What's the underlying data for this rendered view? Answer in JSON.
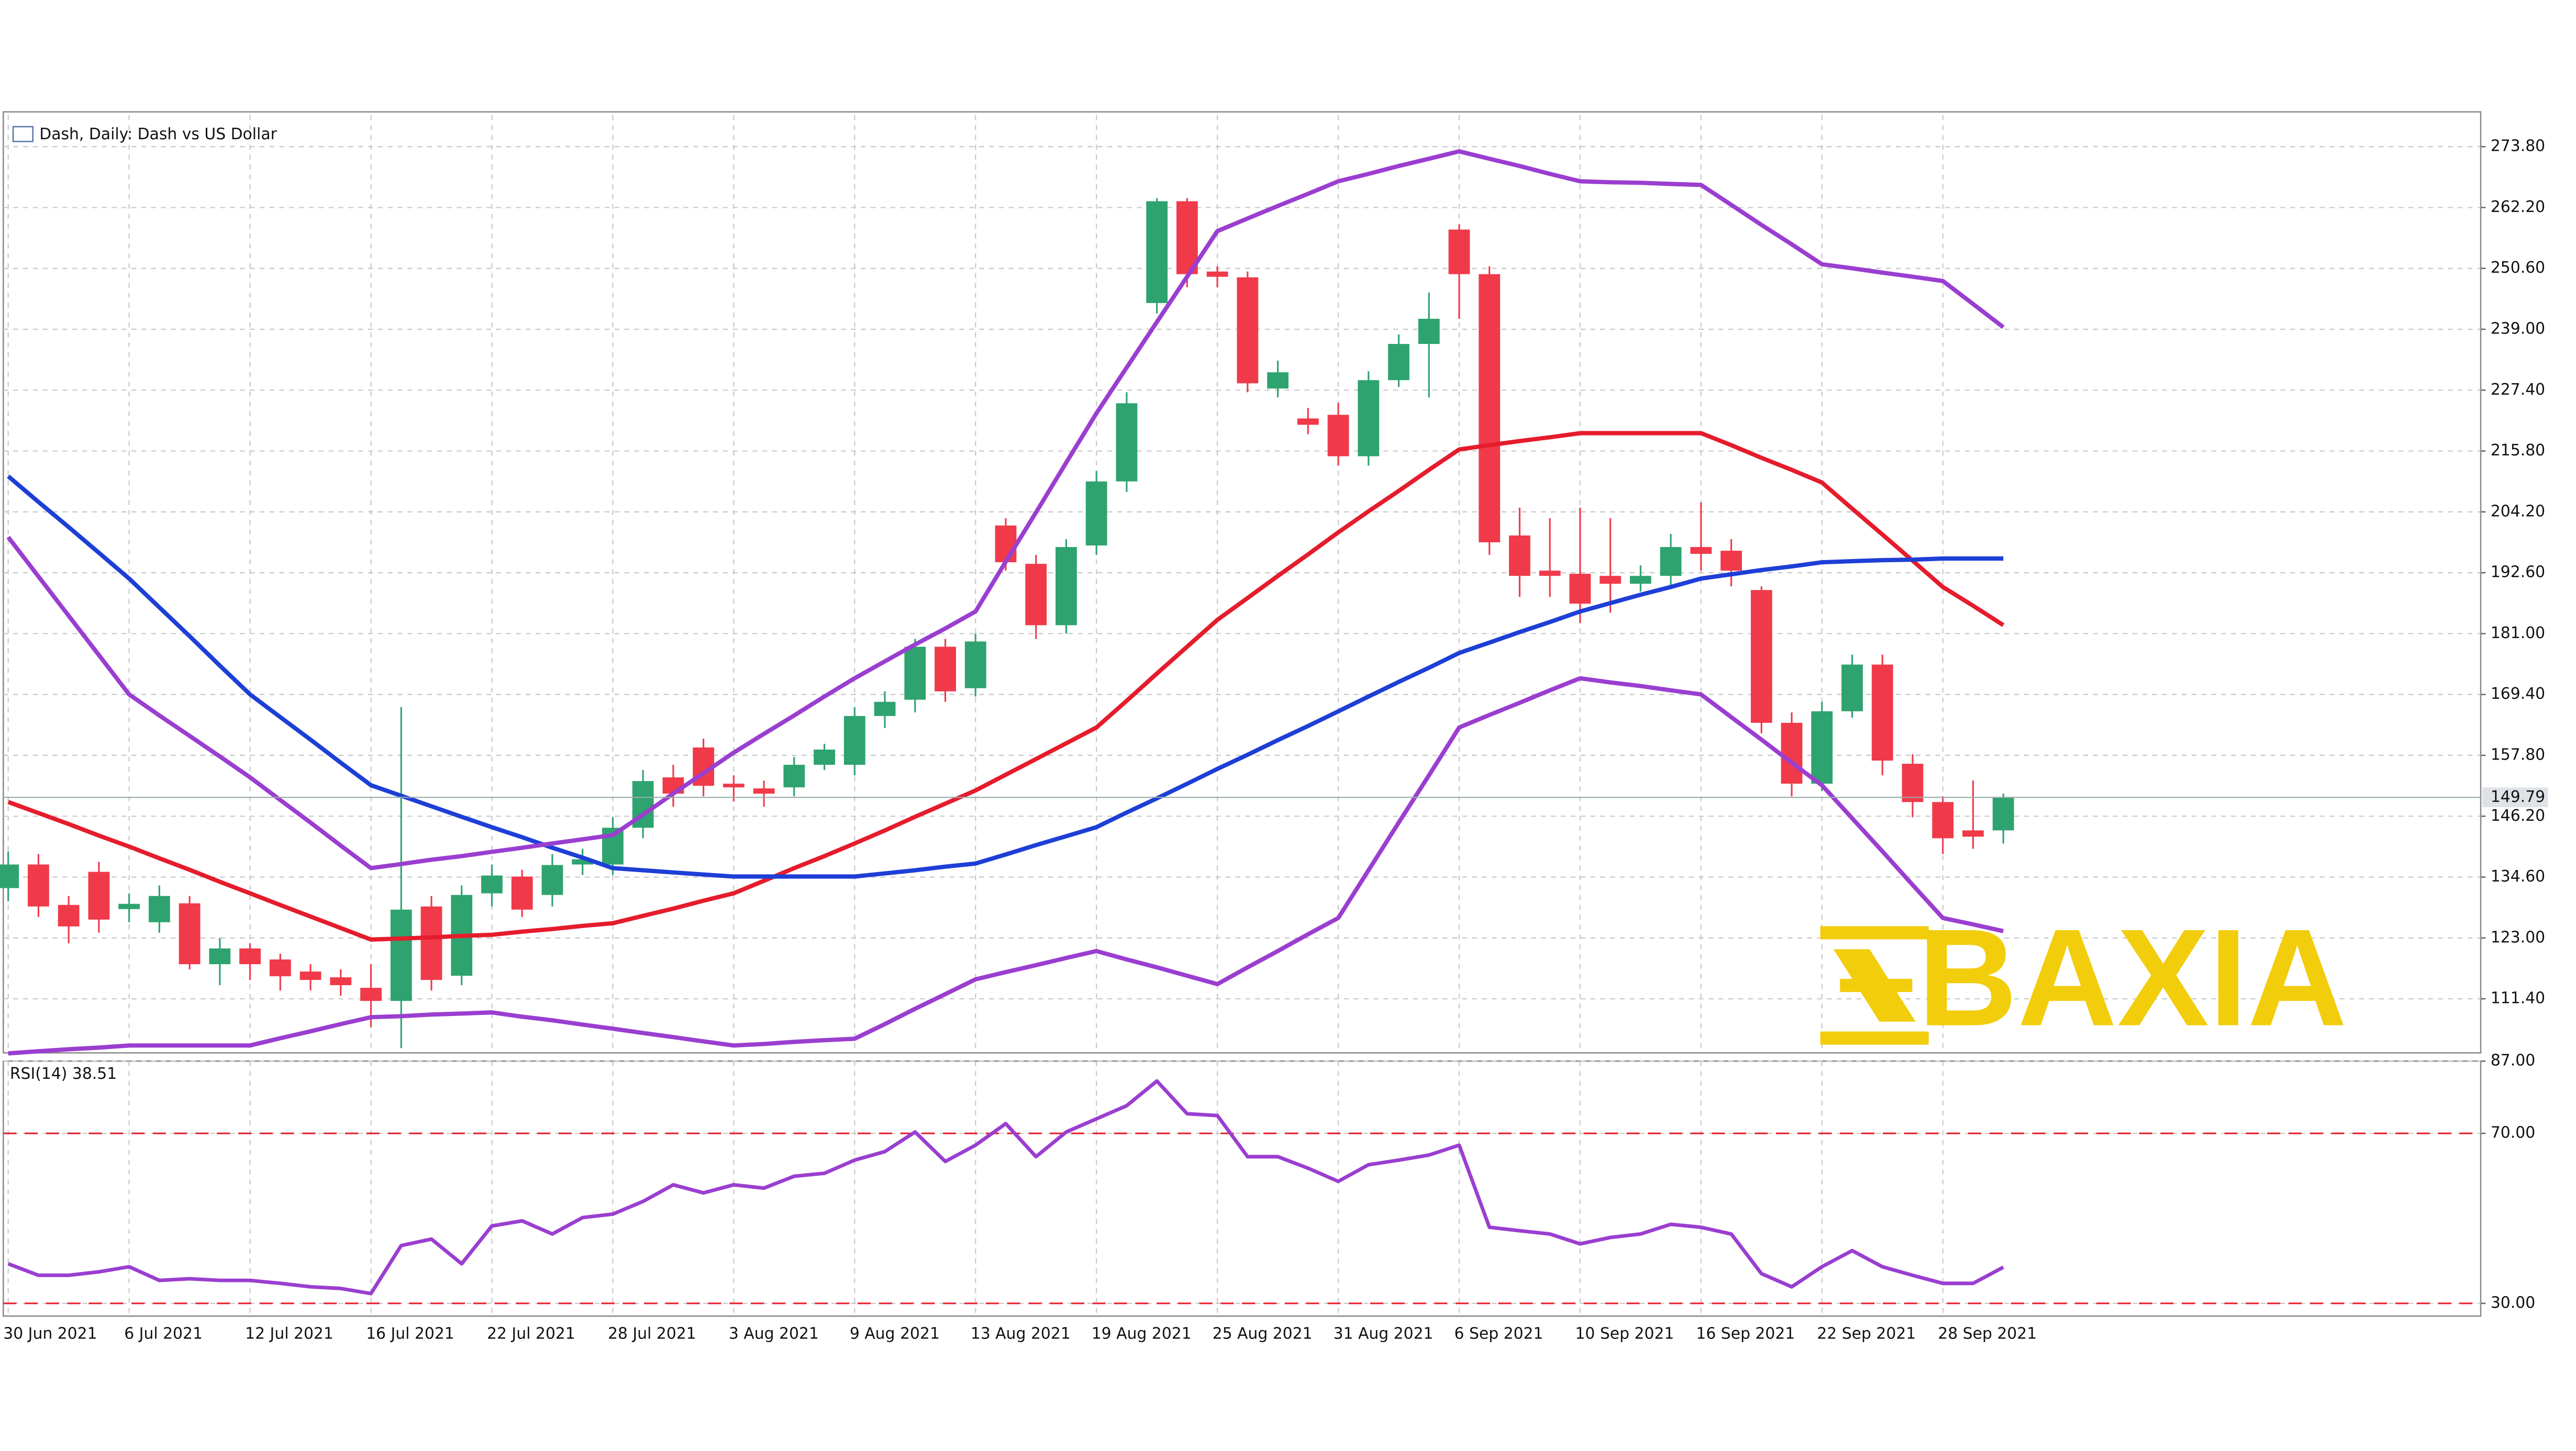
{
  "chart_data": [
    {
      "type": "candlestick",
      "title": "Dash, Daily:  Dash vs US Dollar",
      "watermark": "BAXIA",
      "categories": [
        "30 Jun 2021",
        null,
        null,
        null,
        "6 Jul 2021",
        null,
        null,
        null,
        "12 Jul 2021",
        null,
        null,
        null,
        "16 Jul 2021",
        null,
        null,
        null,
        "22 Jul 2021",
        null,
        null,
        null,
        "28 Jul 2021",
        null,
        null,
        null,
        "3 Aug 2021",
        null,
        null,
        null,
        "9 Aug 2021",
        null,
        null,
        null,
        "13 Aug 2021",
        null,
        null,
        null,
        "19 Aug 2021",
        null,
        null,
        null,
        "25 Aug 2021",
        null,
        null,
        null,
        "31 Aug 2021",
        null,
        null,
        null,
        "6 Sep 2021",
        null,
        null,
        null,
        "10 Sep 2021",
        null,
        null,
        null,
        "16 Sep 2021",
        null,
        null,
        null,
        "22 Sep 2021",
        null,
        null,
        null,
        "28 Sep 2021",
        null,
        null
      ],
      "open": [
        132.5,
        137,
        129.3,
        135.6,
        128.5,
        126,
        129.6,
        118,
        121,
        118.9,
        116.6,
        115.5,
        113.5,
        111,
        129,
        115.8,
        131.5,
        134.7,
        131.2,
        137,
        137,
        144,
        153.6,
        159.3,
        152.4,
        151.5,
        151.7,
        156,
        156,
        165.3,
        168.4,
        178.5,
        170.6,
        201.6,
        194.3,
        182.6,
        197.8,
        210,
        244,
        263.4,
        250,
        248.9,
        227.7,
        222,
        222.7,
        214.8,
        229.3,
        236.2,
        258,
        249.5,
        199.7,
        193,
        192.4,
        192,
        190.5,
        192,
        197.5,
        196.8,
        189.3,
        164,
        152.4,
        166.2,
        175.1,
        156.2,
        148.9,
        143.5,
        143.5
      ],
      "high": [
        139.5,
        139,
        131,
        137.5,
        131.5,
        133,
        131,
        123,
        122,
        120,
        118,
        117,
        118,
        167,
        131,
        133,
        137,
        136,
        139,
        140,
        146,
        155,
        156,
        161,
        154,
        153,
        157.5,
        160,
        167,
        170,
        180,
        180,
        181,
        203,
        196,
        199,
        212,
        227,
        264,
        264,
        251,
        250,
        233,
        224,
        225,
        231,
        238,
        246,
        259,
        251,
        205,
        203,
        205,
        203,
        194,
        200,
        206,
        199,
        190,
        166,
        168,
        177,
        177,
        158,
        150,
        153,
        150.5
      ],
      "low": [
        130,
        127,
        122,
        124,
        126,
        124,
        117,
        114,
        115,
        113,
        113,
        112,
        106,
        102,
        113,
        114,
        129,
        127,
        129,
        135,
        135,
        142,
        148,
        150,
        149,
        148,
        150,
        155,
        154,
        163,
        166,
        168,
        169,
        193,
        180,
        181,
        196,
        208,
        242,
        247,
        247,
        227,
        226,
        219,
        213,
        213,
        228,
        226,
        241,
        196,
        188,
        188,
        183,
        185,
        189,
        190,
        193,
        190,
        162,
        150,
        151,
        165,
        154,
        146,
        139,
        140,
        141
      ],
      "close": [
        137,
        129,
        125.2,
        126.5,
        129.5,
        131,
        118,
        121,
        118,
        115.7,
        115,
        114,
        111,
        128.4,
        115,
        131.2,
        134.9,
        128.4,
        136.9,
        138,
        144,
        152.9,
        150.5,
        152,
        151.7,
        150.5,
        156,
        158.9,
        165.3,
        168,
        178.5,
        170,
        179.5,
        194.6,
        182.6,
        197.5,
        210,
        224.9,
        263.4,
        249.5,
        249,
        228.7,
        230.8,
        220.8,
        214.8,
        229.3,
        236.2,
        241,
        249.5,
        198.4,
        192,
        192,
        186.7,
        190.5,
        192,
        197.5,
        196.2,
        193,
        164,
        152.4,
        166.2,
        175.1,
        156.8,
        148.9,
        142,
        142.3,
        149.79
      ],
      "up_color": "#2ea36f",
      "down_color": "#f03a4a",
      "overlays": [
        {
          "color": "#e51c2c",
          "values": [
            148.9,
            146.8,
            144.7,
            142.5,
            140.4,
            138.2,
            136.0,
            133.7,
            131.5,
            129.3,
            127.1,
            124.9,
            122.7,
            122.9,
            123.1,
            123.4,
            123.6,
            124.2,
            124.7,
            125.3,
            125.8,
            127.2,
            128.6,
            130.1,
            131.5,
            133.9,
            136.3,
            138.6,
            141.0,
            143.5,
            146.1,
            148.6,
            151.1,
            154.1,
            157.1,
            160.1,
            163.1,
            168.2,
            173.4,
            178.5,
            183.6,
            187.8,
            192.0,
            196.1,
            200.3,
            204.3,
            208.2,
            212.2,
            216.1,
            216.9,
            217.7,
            218.4,
            219.2,
            219.2,
            219.2,
            219.2,
            219.2,
            216.9,
            214.5,
            212.2,
            209.8,
            204.8,
            199.9,
            194.9,
            189.9,
            186.3,
            182.6
          ]
        },
        {
          "color": "#1d3fd6",
          "values": [
            211.0,
            206.1,
            201.3,
            196.4,
            191.5,
            186.0,
            180.5,
            174.9,
            169.4,
            165.1,
            160.8,
            156.4,
            152.1,
            150.1,
            148.1,
            146.1,
            144.1,
            142.2,
            140.2,
            138.3,
            136.3,
            135.9,
            135.5,
            135.1,
            134.7,
            134.7,
            134.7,
            134.7,
            134.7,
            135.3,
            135.9,
            136.6,
            137.2,
            138.9,
            140.7,
            142.4,
            144.1,
            146.9,
            149.6,
            152.4,
            155.2,
            157.9,
            160.7,
            163.4,
            166.2,
            169.0,
            171.8,
            174.5,
            177.3,
            179.3,
            181.3,
            183.2,
            185.2,
            186.8,
            188.4,
            189.9,
            191.5,
            192.3,
            193.1,
            193.8,
            194.6,
            194.8,
            195.0,
            195.1,
            195.3,
            195.3,
            195.3
          ]
        },
        {
          "color": "#9a3ed0",
          "values": [
            199.4,
            191.9,
            184.4,
            176.9,
            169.4,
            165.4,
            161.5,
            157.6,
            153.6,
            149.3,
            145.0,
            140.6,
            136.3,
            137.1,
            137.9,
            138.6,
            139.4,
            140.2,
            141.0,
            141.8,
            142.6,
            146.5,
            150.5,
            154.4,
            158.3,
            161.9,
            165.4,
            169.0,
            172.5,
            175.7,
            178.9,
            182.0,
            185.2,
            194.7,
            204.1,
            213.6,
            223.0,
            231.7,
            240.4,
            249.0,
            257.7,
            260.1,
            262.5,
            264.8,
            267.2,
            268.6,
            270.1,
            271.5,
            272.9,
            271.5,
            270.1,
            268.6,
            267.2,
            267.0,
            266.9,
            266.7,
            266.5,
            262.7,
            258.9,
            255.2,
            251.4,
            250.6,
            249.8,
            249.0,
            248.2,
            243.8,
            239.4
          ]
        },
        {
          "color": "#9a3ed0",
          "values": [
            101.0,
            101.4,
            101.8,
            102.1,
            102.5,
            102.5,
            102.5,
            102.5,
            102.5,
            103.9,
            105.2,
            106.6,
            107.9,
            108.1,
            108.4,
            108.6,
            108.8,
            108.0,
            107.3,
            106.5,
            105.7,
            104.9,
            104.1,
            103.3,
            102.5,
            102.8,
            103.2,
            103.5,
            103.8,
            106.6,
            109.5,
            112.3,
            115.1,
            116.5,
            117.8,
            119.2,
            120.5,
            118.9,
            117.4,
            115.8,
            114.2,
            117.4,
            120.5,
            123.7,
            126.8,
            135.9,
            145.0,
            154.0,
            163.1,
            165.5,
            167.8,
            170.2,
            172.5,
            171.7,
            171.0,
            170.2,
            169.4,
            165.1,
            160.8,
            156.4,
            152.1,
            145.8,
            139.5,
            133.1,
            126.8,
            125.6,
            124.3
          ]
        }
      ],
      "last_price": 149.79,
      "ylim": [
        101.1,
        279.8
      ],
      "yticks": [
        {
          "value": 111.4,
          "label": "111.40"
        },
        {
          "value": 123,
          "label": "123.00"
        },
        {
          "value": 134.6,
          "label": "134.60"
        },
        {
          "value": 146.2,
          "label": "146.20"
        },
        {
          "value": 157.8,
          "label": "157.80"
        },
        {
          "value": 169.4,
          "label": "169.40"
        },
        {
          "value": 181,
          "label": "181.00"
        },
        {
          "value": 192.6,
          "label": "192.60"
        },
        {
          "value": 204.2,
          "label": "204.20"
        },
        {
          "value": 215.8,
          "label": "215.80"
        },
        {
          "value": 227.4,
          "label": "227.40"
        },
        {
          "value": 239,
          "label": "239.00"
        },
        {
          "value": 250.6,
          "label": "250.60"
        },
        {
          "value": 262.2,
          "label": "262.20"
        },
        {
          "value": 273.8,
          "label": "273.80"
        }
      ],
      "grid": true
    },
    {
      "type": "line",
      "title": "RSI(14) 38.51",
      "color": "#9a3ed0",
      "values": [
        39.3,
        36.6,
        36.6,
        37.4,
        38.6,
        35.4,
        35.8,
        35.4,
        35.4,
        34.7,
        33.9,
        33.5,
        32.3,
        43.6,
        45.1,
        39.3,
        48.2,
        49.4,
        46.3,
        50.2,
        51.0,
        54.0,
        57.9,
        56.0,
        57.9,
        57.1,
        59.9,
        60.6,
        63.7,
        65.7,
        70.3,
        63.4,
        67.2,
        72.3,
        64.5,
        70.3,
        73.4,
        76.5,
        82.3,
        74.6,
        74.2,
        64.5,
        64.5,
        61.8,
        58.7,
        62.6,
        63.7,
        64.9,
        67.2,
        47.9,
        47.1,
        46.3,
        44.0,
        45.5,
        46.3,
        48.6,
        47.9,
        46.3,
        37.0,
        33.9,
        38.6,
        42.4,
        38.6,
        36.6,
        34.7,
        34.7,
        38.51
      ],
      "levels": [
        70,
        30
      ],
      "level_color": "#e8202f",
      "ylim": [
        27,
        87
      ],
      "yticks": [
        {
          "value": 30,
          "label": "30.00"
        },
        {
          "value": 70,
          "label": "70.00"
        },
        {
          "value": 87,
          "label": "87.00"
        }
      ],
      "grid": true
    }
  ]
}
